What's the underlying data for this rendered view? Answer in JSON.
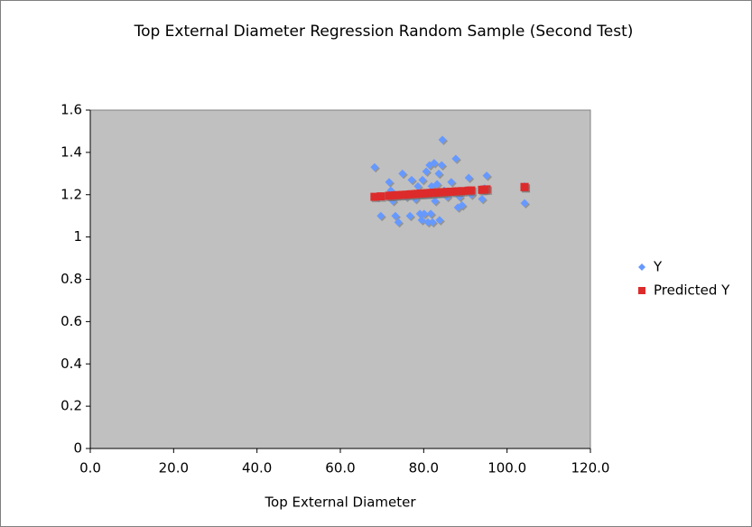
{
  "chart_data": {
    "type": "scatter",
    "title": "Top External Diameter Regression Random Sample (Second Test)",
    "x_label": "Top External Diameter",
    "x": [
      68.2,
      69.7,
      71.7,
      72.1,
      72.6,
      73.2,
      73.9,
      74.9,
      75.8,
      76.7,
      77.1,
      78.0,
      78.6,
      79.1,
      79.5,
      79.7,
      80.1,
      80.6,
      80.8,
      81.0,
      81.4,
      81.7,
      81.9,
      82.1,
      82.5,
      82.7,
      83.2,
      83.6,
      83.8,
      84.3,
      84.5,
      84.9,
      85.6,
      86.6,
      87.7,
      88.2,
      88.6,
      89.2,
      90.8,
      91.4,
      94.0,
      95.1,
      94.6,
      104.2,
      104.2
    ],
    "series": [
      {
        "name": "Y",
        "color": "#6699ff",
        "marker": "diamond",
        "values": [
          1.33,
          1.1,
          1.26,
          1.22,
          1.17,
          1.1,
          1.07,
          1.3,
          1.19,
          1.1,
          1.27,
          1.18,
          1.24,
          1.11,
          1.08,
          1.27,
          1.11,
          1.31,
          1.21,
          1.07,
          1.34,
          1.11,
          1.24,
          1.07,
          1.35,
          1.17,
          1.25,
          1.3,
          1.08,
          1.34,
          1.46,
          1.22,
          1.19,
          1.26,
          1.37,
          1.14,
          1.19,
          1.15,
          1.28,
          1.2,
          1.18,
          1.29,
          1.23,
          1.16,
          1.24
        ]
      },
      {
        "name": "Predicted Y",
        "color": "#dd2b2b",
        "marker": "square",
        "values": [
          1.19,
          1.192,
          1.195,
          1.195,
          1.196,
          1.197,
          1.198,
          1.199,
          1.2,
          1.201,
          1.202,
          1.203,
          1.204,
          1.204,
          1.205,
          1.205,
          1.206,
          1.206,
          1.206,
          1.207,
          1.207,
          1.208,
          1.208,
          1.208,
          1.209,
          1.209,
          1.21,
          1.21,
          1.21,
          1.211,
          1.211,
          1.212,
          1.213,
          1.214,
          1.215,
          1.216,
          1.216,
          1.217,
          1.219,
          1.22,
          1.223,
          1.225,
          1.224,
          1.236,
          1.236
        ]
      }
    ],
    "xlim": [
      0,
      120
    ],
    "xticks": [
      {
        "value": 0,
        "label": "0.0"
      },
      {
        "value": 20,
        "label": "20.0"
      },
      {
        "value": 40,
        "label": "40.0"
      },
      {
        "value": 60,
        "label": "60.0"
      },
      {
        "value": 80,
        "label": "80.0"
      },
      {
        "value": 100,
        "label": "100.0"
      },
      {
        "value": 120,
        "label": "120.0"
      }
    ],
    "ylim": [
      0,
      1.6
    ],
    "yticks": [
      0,
      0.2,
      0.4,
      0.6,
      0.8,
      1,
      1.2,
      1.4,
      1.6
    ],
    "plot_background": "#c0c0c0",
    "legend": "right"
  }
}
